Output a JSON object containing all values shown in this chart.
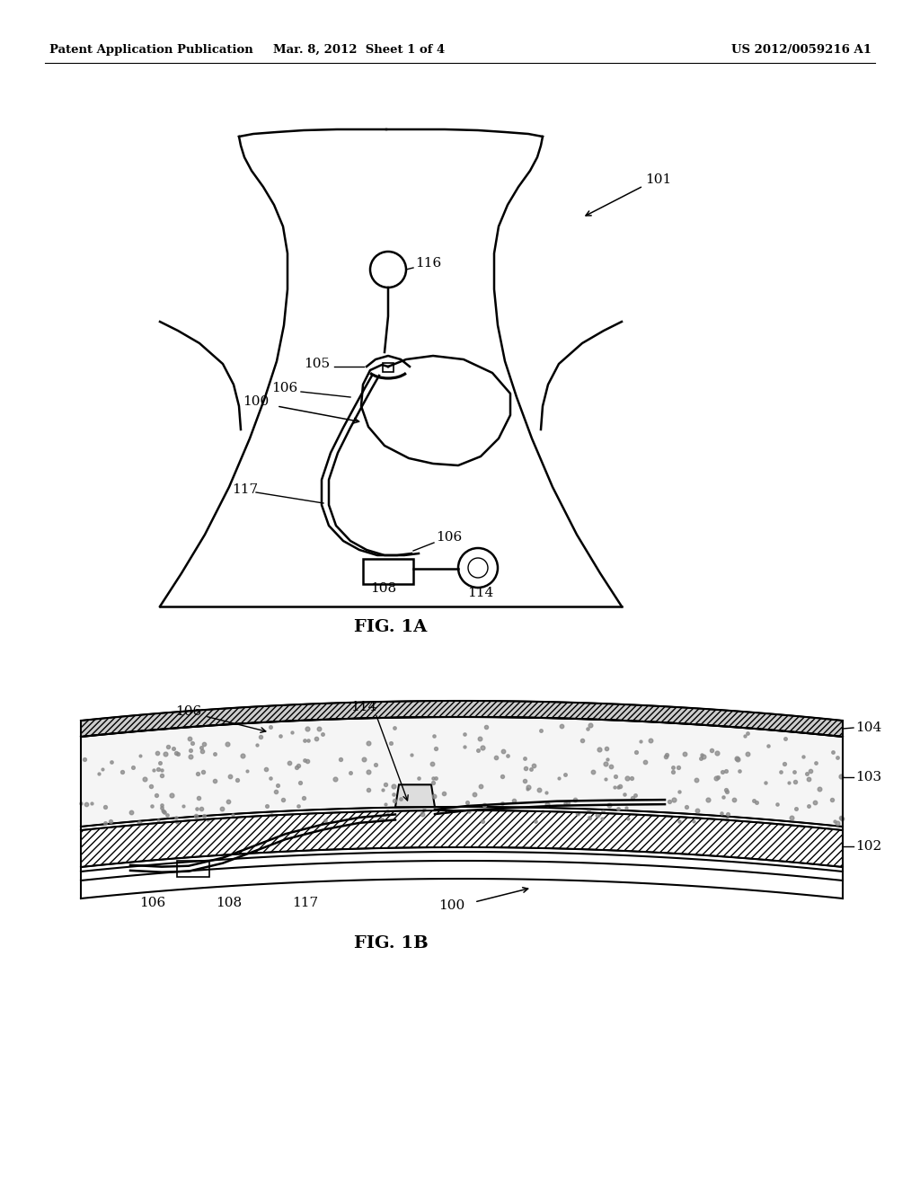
{
  "bg_color": "#ffffff",
  "line_color": "#000000",
  "header_left": "Patent Application Publication",
  "header_mid": "Mar. 8, 2012  Sheet 1 of 4",
  "header_right": "US 2012/0059216 A1",
  "fig1a_label": "FIG. 1A",
  "fig1b_label": "FIG. 1B",
  "label_fontsize": 11,
  "header_fontsize": 9.5,
  "caption_fontsize": 14
}
